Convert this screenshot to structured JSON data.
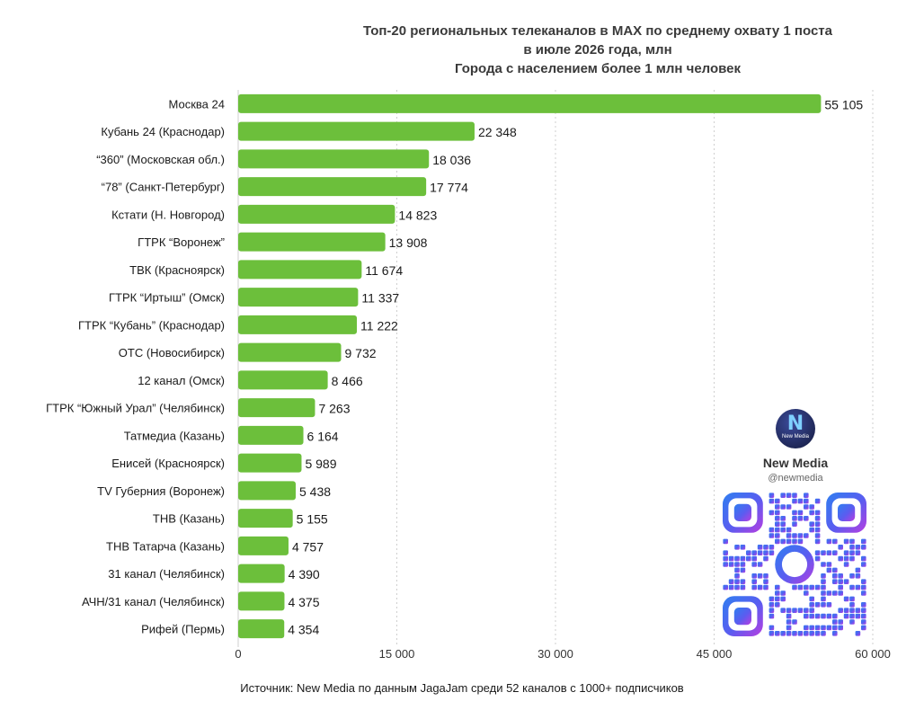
{
  "title_lines": [
    "Топ-20 региональных телеканалов в MAX по среднему охвату 1 поста",
    "в июле 2026 года, млн",
    "Города с населением более 1 млн человек"
  ],
  "source": "Источник: New Media по данным JagaJam среди 52 каналов с 1000+ подписчиков",
  "brand": {
    "logo_text": "New Media",
    "name": "New Media",
    "handle": "@newmedia"
  },
  "colors": {
    "bar": "#6cbf3b",
    "grid": "#cfcfcf",
    "text": "#1a1a1a"
  },
  "chart_data": {
    "type": "bar",
    "orientation": "horizontal",
    "title": "Топ-20 региональных телеканалов в MAX по среднему охвату 1 поста в июле 2026 года, млн",
    "subtitle": "Города с населением более 1 млн человек",
    "xlim": [
      0,
      60000
    ],
    "xticks": [
      0,
      15000,
      30000,
      45000,
      60000
    ],
    "xtick_labels": [
      "0",
      "15 000",
      "30 000",
      "45 000",
      "60 000"
    ],
    "grid": "vertical dashed",
    "categories": [
      "Москва 24",
      "Кубань 24 (Краснодар)",
      "“360” (Московская обл.)",
      "“78” (Санкт-Петербург)",
      "Кстати (Н. Новгород)",
      "ГТРК “Воронеж”",
      "ТВК (Красноярск)",
      "ГТРК “Иртыш” (Омск)",
      "ГТРК “Кубань” (Краснодар)",
      "ОТС (Новосибирск)",
      "12 канал (Омск)",
      "ГТРК “Южный Урал” (Челябинск)",
      "Татмедиа (Казань)",
      "Енисей (Красноярск)",
      "TV Губерния (Воронеж)",
      "ТНВ (Казань)",
      "ТНВ Татарча (Казань)",
      "31 канал (Челябинск)",
      "АЧН/31 канал (Челябинск)",
      "Рифей (Пермь)"
    ],
    "values": [
      55105,
      22348,
      18036,
      17774,
      14823,
      13908,
      11674,
      11337,
      11222,
      9732,
      8466,
      7263,
      6164,
      5989,
      5438,
      5155,
      4757,
      4390,
      4375,
      4354
    ],
    "value_labels": [
      "55 105",
      "22 348",
      "18 036",
      "17 774",
      "14 823",
      "13 908",
      "11 674",
      "11 337",
      "11 222",
      "9 732",
      "8 466",
      "7 263",
      "6 164",
      "5 989",
      "5 438",
      "5 155",
      "4 757",
      "4 390",
      "4 375",
      "4 354"
    ]
  }
}
